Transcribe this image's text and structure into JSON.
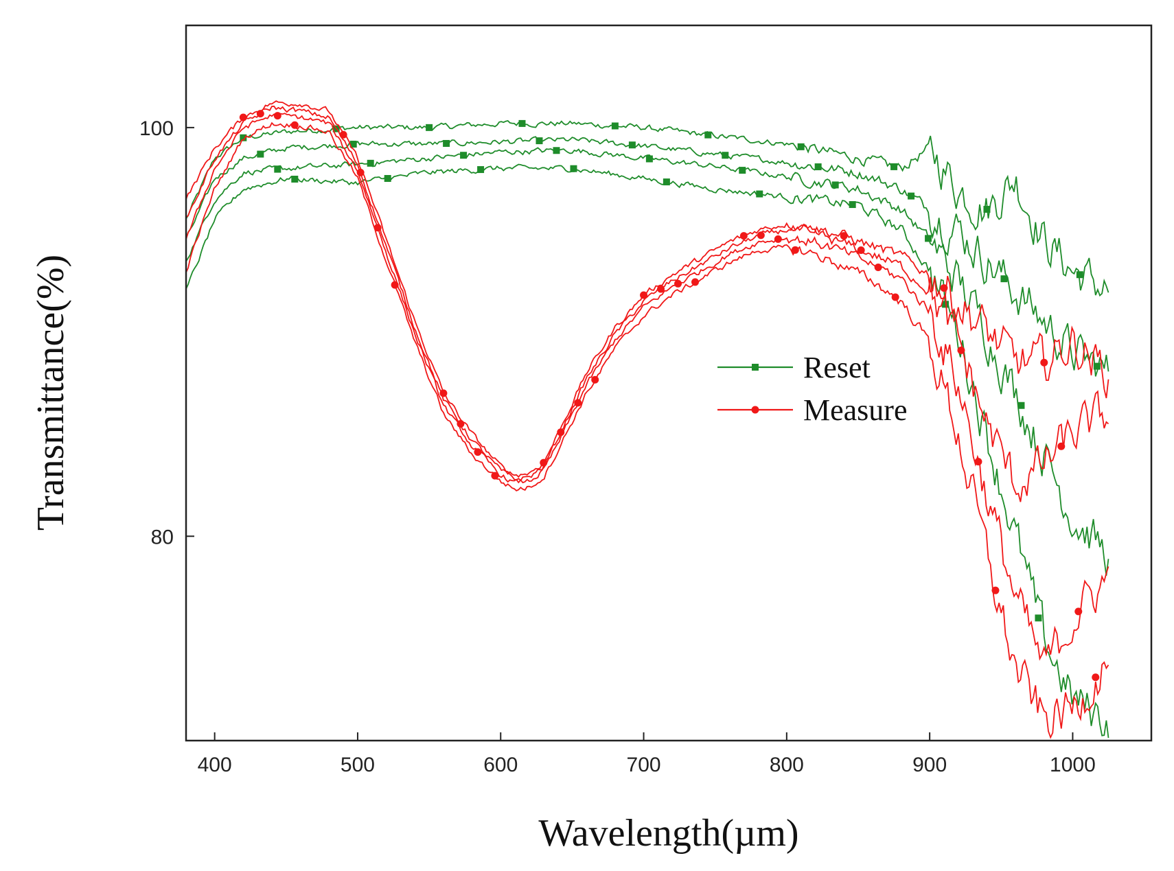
{
  "chart_data": {
    "type": "line",
    "xlabel": "Wavelength(µm)",
    "ylabel": "Transmittance(%)",
    "xlim": [
      380,
      1055
    ],
    "ylim": [
      70,
      105
    ],
    "xticks": [
      400,
      500,
      600,
      700,
      800,
      900,
      1000
    ],
    "yticks": [
      80,
      100
    ],
    "grid": false,
    "legend_position": "center-right",
    "colors": {
      "Reset": "#1e8c2a",
      "Measure": "#f01818"
    },
    "series": [
      {
        "name": "Reset",
        "curves": [
          {
            "x": [
              380,
              400,
              420,
              450,
              500,
              550,
              600,
              650,
              700,
              750,
              800,
              850,
              880,
              900,
              920,
              940,
              960,
              980,
              1000,
              1025
            ],
            "y": [
              95.5,
              98.5,
              99.5,
              99.8,
              100.0,
              100.0,
              100.2,
              100.2,
              100.0,
              99.6,
              99.2,
              98.5,
              98.0,
              99.0,
              97.0,
              96.0,
              97.5,
              94.5,
              93.0,
              92.0
            ]
          },
          {
            "x": [
              380,
              400,
              420,
              450,
              500,
              550,
              600,
              650,
              700,
              750,
              800,
              850,
              880,
              900,
              920,
              940,
              960,
              980,
              1000,
              1025
            ],
            "y": [
              94.5,
              97.5,
              98.5,
              99.0,
              99.2,
              99.2,
              99.3,
              99.4,
              99.1,
              98.7,
              98.3,
              97.8,
              97.0,
              96.0,
              95.0,
              93.5,
              92.0,
              90.5,
              89.0,
              88.0
            ]
          },
          {
            "x": [
              380,
              400,
              420,
              450,
              500,
              550,
              600,
              650,
              700,
              750,
              800,
              850,
              880,
              900,
              920,
              940,
              960,
              980,
              1000,
              1025
            ],
            "y": [
              93.5,
              96.5,
              97.8,
              98.0,
              98.2,
              98.5,
              98.8,
              98.9,
              98.5,
              98.1,
              97.6,
              97.0,
              96.0,
              94.5,
              92.5,
              90.0,
              87.0,
              84.0,
              81.0,
              79.0
            ]
          },
          {
            "x": [
              380,
              400,
              420,
              450,
              500,
              550,
              600,
              650,
              700,
              750,
              800,
              850,
              880,
              900,
              920,
              940,
              960,
              980,
              1000,
              1025
            ],
            "y": [
              92.0,
              95.5,
              97.0,
              97.5,
              97.3,
              97.8,
              98.0,
              98.0,
              97.5,
              97.0,
              96.6,
              96.2,
              95.0,
              93.0,
              90.0,
              85.0,
              80.0,
              75.0,
              72.0,
              71.0
            ]
          }
        ]
      },
      {
        "name": "Measure",
        "curves": [
          {
            "x": [
              380,
              400,
              420,
              440,
              460,
              480,
              500,
              520,
              540,
              560,
              580,
              600,
              610,
              620,
              630,
              640,
              660,
              680,
              700,
              720,
              740,
              760,
              780,
              800,
              820,
              840,
              860,
              880,
              900,
              920,
              940,
              960,
              980,
              1000,
              1025
            ],
            "y": [
              96.5,
              99.0,
              100.5,
              101.2,
              101.2,
              100.8,
              98.5,
              94.5,
              90.5,
              87.0,
              85.0,
              83.4,
              83.0,
              83.1,
              83.6,
              85.0,
              88.0,
              90.2,
              91.8,
              92.8,
              93.6,
              94.4,
              95.0,
              95.3,
              95.1,
              94.7,
              94.2,
              93.7,
              92.8,
              91.5,
              90.0,
              88.5,
              88.5,
              89.5,
              88.0
            ]
          },
          {
            "x": [
              380,
              400,
              420,
              440,
              460,
              480,
              500,
              520,
              540,
              560,
              580,
              600,
              610,
              620,
              630,
              640,
              660,
              680,
              700,
              720,
              740,
              760,
              780,
              800,
              820,
              840,
              860,
              880,
              900,
              920,
              940,
              960,
              980,
              1000,
              1025
            ],
            "y": [
              95.5,
              98.5,
              100.2,
              101.0,
              100.8,
              100.5,
              98.2,
              94.2,
              90.2,
              86.7,
              84.7,
              83.2,
              82.8,
              82.9,
              83.4,
              84.8,
              87.7,
              89.9,
              91.5,
              92.5,
              93.3,
              94.1,
              94.7,
              95.0,
              94.8,
              94.3,
              93.8,
              93.2,
              92.0,
              89.5,
              85.5,
              82.5,
              83.5,
              85.0,
              86.0
            ]
          },
          {
            "x": [
              380,
              400,
              420,
              440,
              460,
              480,
              500,
              520,
              540,
              560,
              580,
              600,
              610,
              620,
              630,
              640,
              660,
              680,
              700,
              720,
              740,
              760,
              780,
              800,
              820,
              840,
              860,
              880,
              900,
              920,
              940,
              960,
              980,
              1000,
              1025
            ],
            "y": [
              94.5,
              98.0,
              100.0,
              100.6,
              100.5,
              100.2,
              97.9,
              93.9,
              89.9,
              86.4,
              84.4,
              83.0,
              82.6,
              82.7,
              83.2,
              84.5,
              87.4,
              89.6,
              91.2,
              92.2,
              93.0,
              93.8,
              94.4,
              94.6,
              94.4,
              93.9,
              93.3,
              92.6,
              91.0,
              87.5,
              82.0,
              77.0,
              73.5,
              76.0,
              78.0
            ]
          },
          {
            "x": [
              380,
              400,
              420,
              440,
              460,
              480,
              500,
              520,
              540,
              560,
              580,
              600,
              610,
              620,
              630,
              640,
              660,
              680,
              700,
              720,
              740,
              760,
              780,
              800,
              820,
              840,
              860,
              880,
              900,
              920,
              940,
              960,
              980,
              1000,
              1025
            ],
            "y": [
              93.0,
              97.0,
              99.5,
              100.2,
              100.1,
              99.8,
              97.5,
              93.5,
              89.5,
              86.0,
              84.0,
              82.7,
              82.3,
              82.4,
              82.9,
              84.2,
              87.0,
              89.2,
              90.8,
              91.8,
              92.6,
              93.4,
              94.0,
              94.1,
              93.8,
              93.2,
              92.5,
              91.5,
              89.5,
              85.0,
              79.0,
              73.5,
              71.0,
              71.5,
              74.0
            ]
          }
        ]
      }
    ]
  }
}
